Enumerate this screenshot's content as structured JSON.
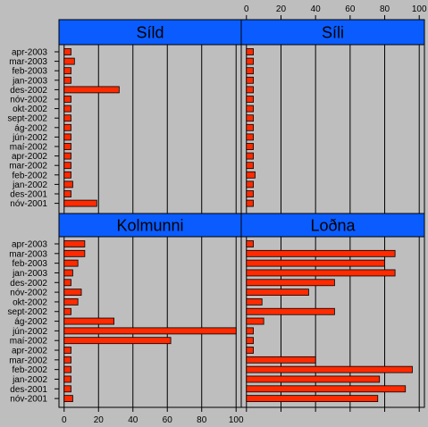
{
  "chart_data": {
    "type": "bar",
    "orientation": "horizontal",
    "layout": "2x2 trellis panels",
    "background": "#bebebe",
    "strip_color": "#0a5cff",
    "bar_color": "#ff2a00",
    "grid": true,
    "xlim": [
      -3,
      103
    ],
    "xticks": [
      0,
      20,
      40,
      60,
      80,
      100
    ],
    "xtick_labels": [
      "0",
      "20",
      "40",
      "60",
      "80",
      "100"
    ],
    "top_panels": {
      "categories": [
        "apr-2003",
        "mar-2003",
        "feb-2003",
        "jan-2003",
        "des-2002",
        "nóv-2002",
        "okt-2002",
        "sept-2002",
        "ág-2002",
        "jún-2002",
        "maí-2002",
        "apr-2002",
        "mar-2002",
        "feb-2002",
        "jan-2002",
        "des-2001",
        "nóv-2001"
      ]
    },
    "bottom_panels": {
      "categories": [
        "apr-2003",
        "mar-2003",
        "feb-2003",
        "jan-2003",
        "des-2002",
        "nóv-2002",
        "okt-2002",
        "sept-2002",
        "ág-2002",
        "jún-2002",
        "maí-2002",
        "apr-2002",
        "mar-2002",
        "feb-2002",
        "jan-2002",
        "des-2001",
        "nóv-2001"
      ]
    },
    "series": [
      {
        "name": "Síld",
        "values": [
          4,
          6,
          4,
          4,
          32,
          4,
          4,
          4,
          4,
          4,
          4,
          4,
          4,
          4,
          5,
          4,
          19
        ]
      },
      {
        "name": "Síli",
        "values": [
          4,
          4,
          4,
          4,
          4,
          4,
          4,
          4,
          4,
          4,
          4,
          4,
          4,
          5,
          4,
          4,
          4
        ]
      },
      {
        "name": "Kolmunni",
        "values": [
          12,
          12,
          8,
          5,
          4,
          10,
          8,
          4,
          29,
          100,
          62,
          4,
          4,
          4,
          4,
          4,
          5
        ]
      },
      {
        "name": "Loðna",
        "values": [
          4,
          86,
          80,
          86,
          51,
          36,
          9,
          51,
          10,
          4,
          4,
          4,
          40,
          96,
          77,
          92,
          76
        ]
      }
    ]
  }
}
